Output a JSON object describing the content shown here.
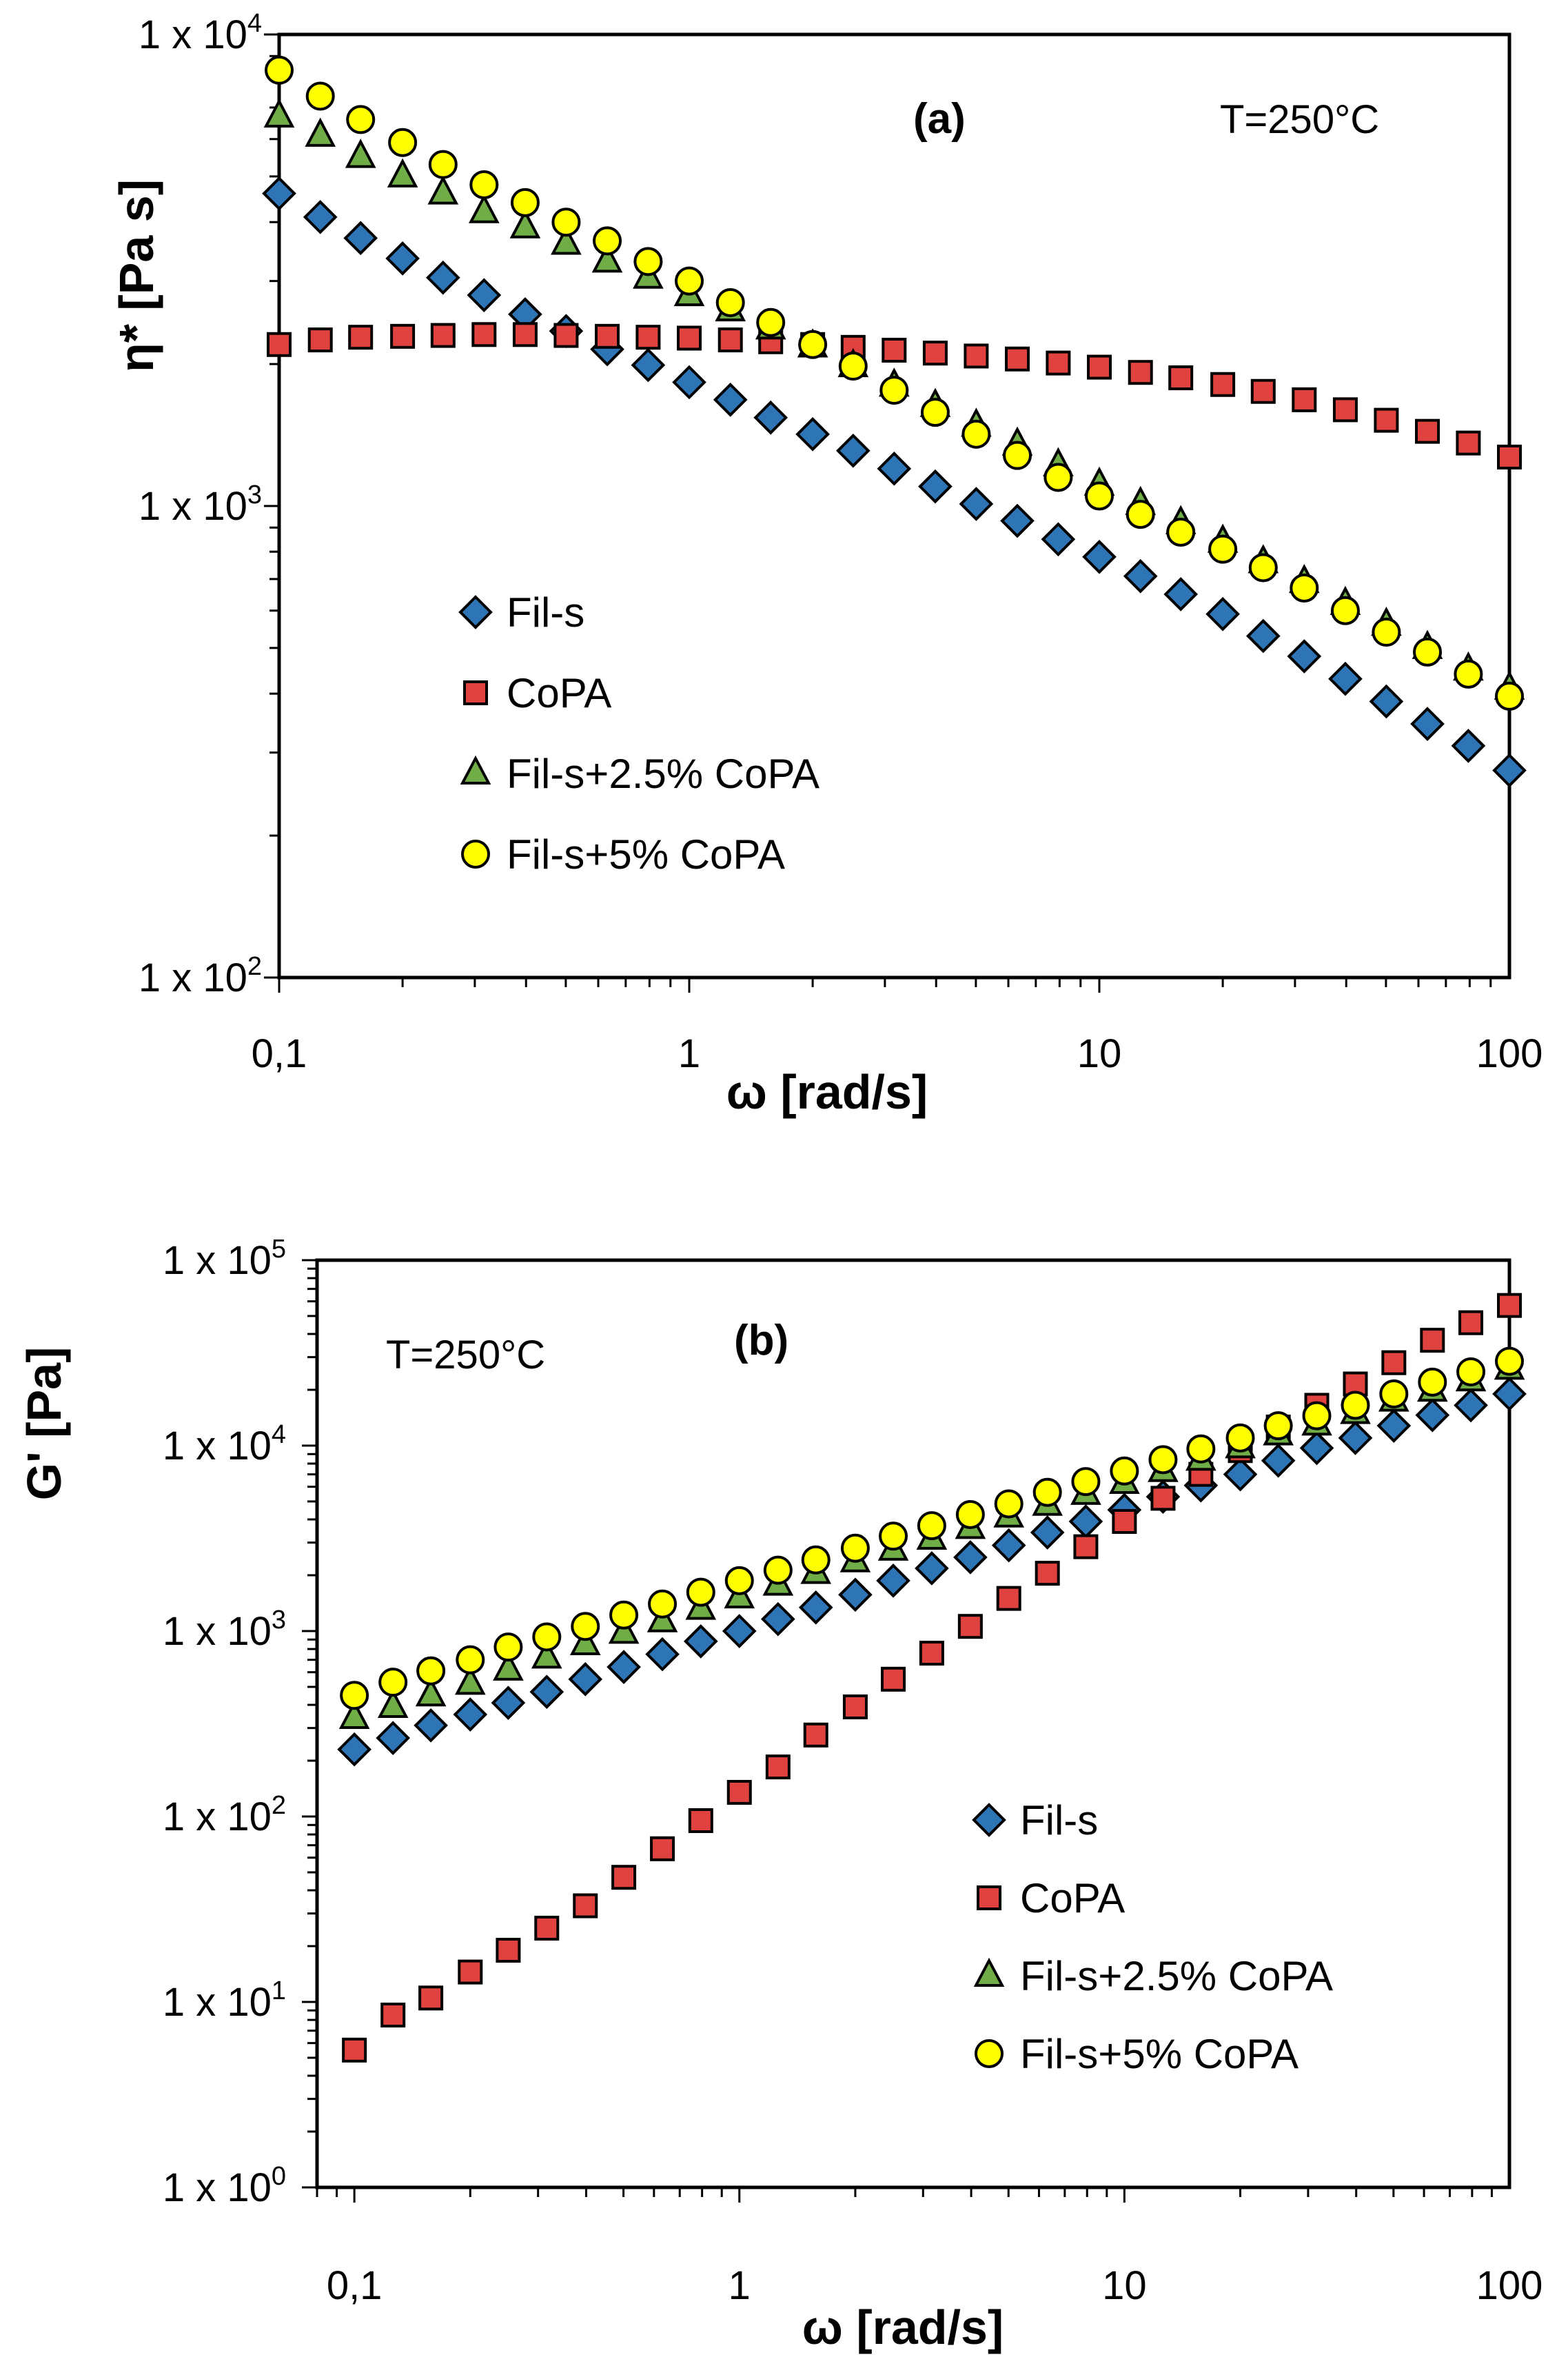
{
  "chart_data": [
    {
      "type": "scatter",
      "panel": "(a)",
      "annotation": "T=250°C",
      "xlabel": "ω [rad/s]",
      "ylabel": "η* [Pa s]",
      "xscale": "log",
      "yscale": "log",
      "xlim": [
        0.1,
        100
      ],
      "ylim": [
        100,
        10000
      ],
      "xticks": [
        {
          "label": "0,1",
          "value": 0.1
        },
        {
          "label": "1",
          "value": 1
        },
        {
          "label": "10",
          "value": 10
        },
        {
          "label": "100",
          "value": 100
        }
      ],
      "yticks": [
        {
          "mant": "1 x 10",
          "exp": "2",
          "value": 100
        },
        {
          "mant": "1 x 10",
          "exp": "3",
          "value": 1000
        },
        {
          "mant": "1 x 10",
          "exp": "4",
          "value": 10000
        }
      ],
      "legend_position": "lower-left",
      "x": [
        0.1,
        0.126,
        0.158,
        0.2,
        0.251,
        0.316,
        0.398,
        0.501,
        0.631,
        0.794,
        1.0,
        1.26,
        1.58,
        2.0,
        2.51,
        3.16,
        3.98,
        5.01,
        6.31,
        7.94,
        10.0,
        12.6,
        15.8,
        20.0,
        25.1,
        31.6,
        39.8,
        50.1,
        63.1,
        79.4,
        100.0
      ],
      "series": [
        {
          "name": "Fil-s",
          "marker": "diamond",
          "color": "#2E75B6",
          "values": [
            4600,
            4100,
            3700,
            3350,
            3050,
            2800,
            2550,
            2350,
            2150,
            1990,
            1830,
            1680,
            1540,
            1420,
            1310,
            1200,
            1100,
            1010,
            930,
            850,
            780,
            710,
            650,
            590,
            530,
            480,
            430,
            385,
            345,
            310,
            275
          ]
        },
        {
          "name": "CoPA",
          "marker": "square",
          "color": "#E0433F",
          "values": [
            2200,
            2250,
            2280,
            2290,
            2300,
            2310,
            2310,
            2300,
            2290,
            2280,
            2270,
            2250,
            2230,
            2200,
            2170,
            2140,
            2110,
            2080,
            2050,
            2010,
            1970,
            1920,
            1870,
            1810,
            1750,
            1680,
            1600,
            1520,
            1440,
            1360,
            1270
          ]
        },
        {
          "name": "Fil-s+2.5% CoPA",
          "marker": "triangle",
          "color": "#70AD47",
          "values": [
            6700,
            6100,
            5500,
            5000,
            4600,
            4200,
            3900,
            3600,
            3300,
            3050,
            2800,
            2600,
            2380,
            2180,
            1980,
            1800,
            1630,
            1480,
            1350,
            1220,
            1110,
            1010,
            920,
            840,
            760,
            690,
            620,
            560,
            500,
            450,
            410
          ]
        },
        {
          "name": "Fil-s+5% CoPA",
          "marker": "circle",
          "color": "#FFFF00",
          "values": [
            8400,
            7400,
            6600,
            5900,
            5300,
            4800,
            4400,
            4000,
            3650,
            3300,
            3000,
            2700,
            2450,
            2200,
            1980,
            1760,
            1580,
            1420,
            1280,
            1150,
            1050,
            960,
            880,
            810,
            740,
            670,
            600,
            540,
            490,
            440,
            395
          ]
        }
      ]
    },
    {
      "type": "scatter",
      "panel": "(b)",
      "annotation": "T=250°C",
      "xlabel": "ω [rad/s]",
      "ylabel": "G' [Pa]",
      "xscale": "log",
      "yscale": "log",
      "xlim": [
        0.08,
        100
      ],
      "ylim": [
        1,
        100000
      ],
      "xticks": [
        {
          "label": "0,1",
          "value": 0.1
        },
        {
          "label": "1",
          "value": 1
        },
        {
          "label": "10",
          "value": 10
        },
        {
          "label": "100",
          "value": 100
        }
      ],
      "yticks": [
        {
          "mant": "1 x 10",
          "exp": "0",
          "value": 1
        },
        {
          "mant": "1 x 10",
          "exp": "1",
          "value": 10
        },
        {
          "mant": "1 x 10",
          "exp": "2",
          "value": 100
        },
        {
          "mant": "1 x 10",
          "exp": "3",
          "value": 1000
        },
        {
          "mant": "1 x 10",
          "exp": "4",
          "value": 10000
        },
        {
          "mant": "1 x 10",
          "exp": "5",
          "value": 100000
        }
      ],
      "legend_position": "lower-right",
      "x": [
        0.1,
        0.126,
        0.158,
        0.2,
        0.251,
        0.316,
        0.398,
        0.501,
        0.631,
        0.794,
        1.0,
        1.26,
        1.58,
        2.0,
        2.51,
        3.16,
        3.98,
        5.01,
        6.31,
        7.94,
        10.0,
        12.6,
        15.8,
        20.0,
        25.1,
        31.6,
        39.8,
        50.1,
        63.1,
        79.4,
        100.0
      ],
      "series": [
        {
          "name": "Fil-s",
          "marker": "diamond",
          "color": "#2E75B6",
          "values": [
            230,
            265,
            310,
            355,
            410,
            470,
            550,
            640,
            750,
            880,
            1000,
            1160,
            1340,
            1570,
            1870,
            2180,
            2500,
            2900,
            3400,
            3900,
            4500,
            5300,
            6100,
            7000,
            8300,
            9700,
            11000,
            12800,
            14600,
            16500,
            19000
          ]
        },
        {
          "name": "CoPA",
          "marker": "square",
          "color": "#E0433F",
          "values": [
            5.5,
            8.5,
            10.5,
            14.5,
            19,
            25,
            33,
            47,
            67,
            95,
            135,
            185,
            275,
            390,
            550,
            760,
            1060,
            1500,
            2050,
            2850,
            3900,
            5200,
            7000,
            9400,
            12600,
            16500,
            21500,
            28000,
            37000,
            46000,
            57000
          ]
        },
        {
          "name": "Fil-s+2.5% CoPA",
          "marker": "triangle",
          "color": "#70AD47",
          "values": [
            340,
            390,
            450,
            520,
            620,
            720,
            850,
            980,
            1130,
            1320,
            1520,
            1780,
            2060,
            2380,
            2750,
            3150,
            3600,
            4150,
            4800,
            5500,
            6300,
            7300,
            8400,
            9800,
            11500,
            13000,
            15000,
            17500,
            19800,
            22500,
            26000
          ]
        },
        {
          "name": "Fil-s+5% CoPA",
          "marker": "circle",
          "color": "#FFFF00",
          "values": [
            450,
            530,
            610,
            700,
            820,
            930,
            1060,
            1220,
            1400,
            1620,
            1870,
            2130,
            2420,
            2800,
            3250,
            3700,
            4250,
            4850,
            5600,
            6400,
            7300,
            8400,
            9600,
            11000,
            12800,
            14500,
            16500,
            19000,
            22000,
            25000,
            28500
          ]
        }
      ]
    }
  ]
}
